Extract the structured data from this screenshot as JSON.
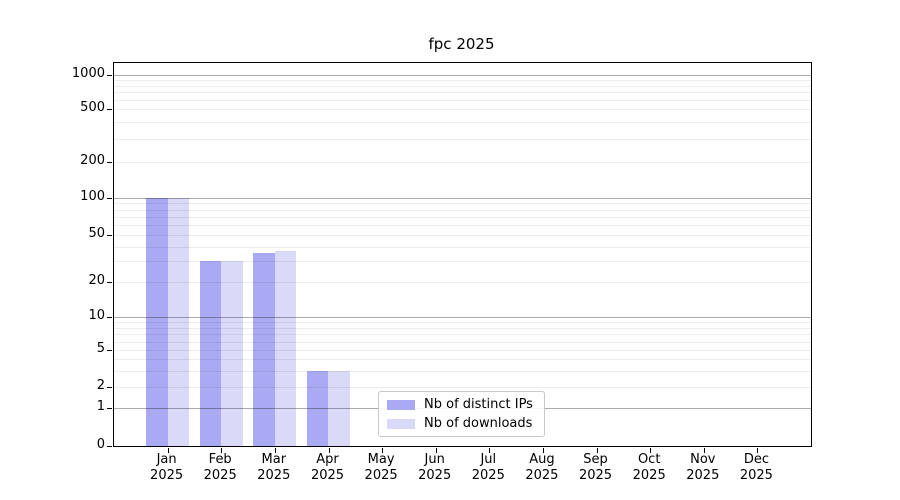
{
  "chart_data": {
    "type": "bar",
    "title": "fpc 2025",
    "categories": [
      "Jan",
      "Feb",
      "Mar",
      "Apr",
      "May",
      "Jun",
      "Jul",
      "Aug",
      "Sep",
      "Oct",
      "Nov",
      "Dec"
    ],
    "x_tick_year": "2025",
    "series": [
      {
        "name": "Nb of distinct IPs",
        "color": "#a9a9f4",
        "values": [
          100,
          30,
          35,
          3,
          0,
          0,
          0,
          0,
          0,
          0,
          0,
          0
        ]
      },
      {
        "name": "Nb of downloads",
        "color": "#dadaf8",
        "values": [
          100,
          30,
          37,
          3,
          0,
          0,
          0,
          0,
          0,
          0,
          0,
          0
        ]
      }
    ],
    "y_axis": {
      "scale": "symlog",
      "ticks": [
        1000,
        500,
        200,
        100,
        50,
        20,
        10,
        5,
        2,
        1,
        0
      ],
      "ylim": [
        0,
        1250
      ]
    },
    "xlabel": "",
    "ylabel": "",
    "grid": {
      "horizontal": true,
      "major_at": [
        1,
        10,
        100,
        1000
      ],
      "minor": "log sub-decades 2-9"
    },
    "legend": {
      "position": "lower-center-left",
      "entries": [
        "Nb of distinct IPs",
        "Nb of downloads"
      ]
    }
  },
  "colors": {
    "background": "#ffffff",
    "bar_ips": "#a9a9f4",
    "bar_downloads": "#dadaf8",
    "spine": "#000000",
    "text": "#000000",
    "legend_border": "#c9c9c9"
  }
}
